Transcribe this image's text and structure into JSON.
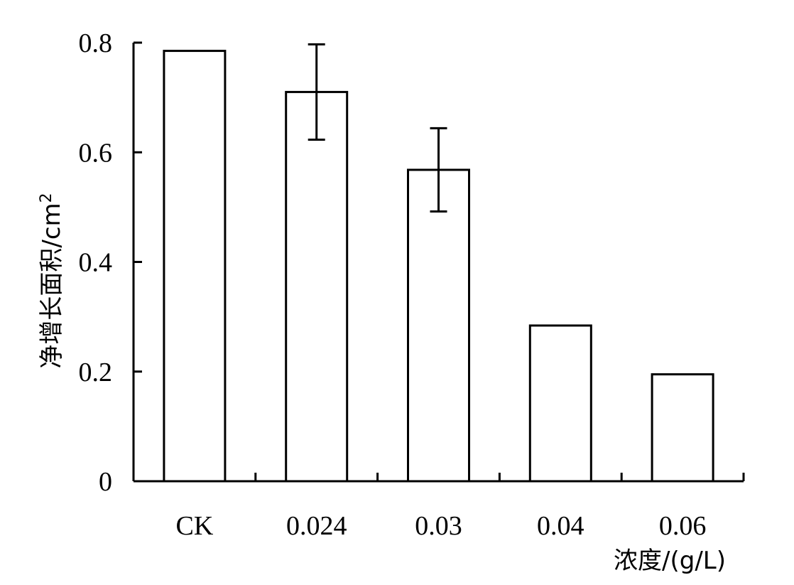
{
  "chart_data": {
    "type": "bar",
    "categories": [
      "CK",
      "0.024",
      "0.03",
      "0.04",
      "0.06"
    ],
    "values": [
      0.785,
      0.71,
      0.568,
      0.284,
      0.195
    ],
    "error_bars": [
      null,
      0.087,
      0.076,
      null,
      null
    ],
    "title": "",
    "xlabel": "浓度/(g/L)",
    "ylabel": "净增长面积/cm",
    "ylabel_superscript": "2",
    "ylim": [
      0,
      0.8
    ],
    "yticks": [
      0,
      0.2,
      0.4,
      0.6,
      0.8
    ],
    "ytick_labels": [
      "0",
      "0.2",
      "0.4",
      "0.6",
      "0.8"
    ],
    "bar_fill": "#ffffff",
    "bar_stroke": "#000000",
    "grid": false,
    "legend": "none"
  }
}
